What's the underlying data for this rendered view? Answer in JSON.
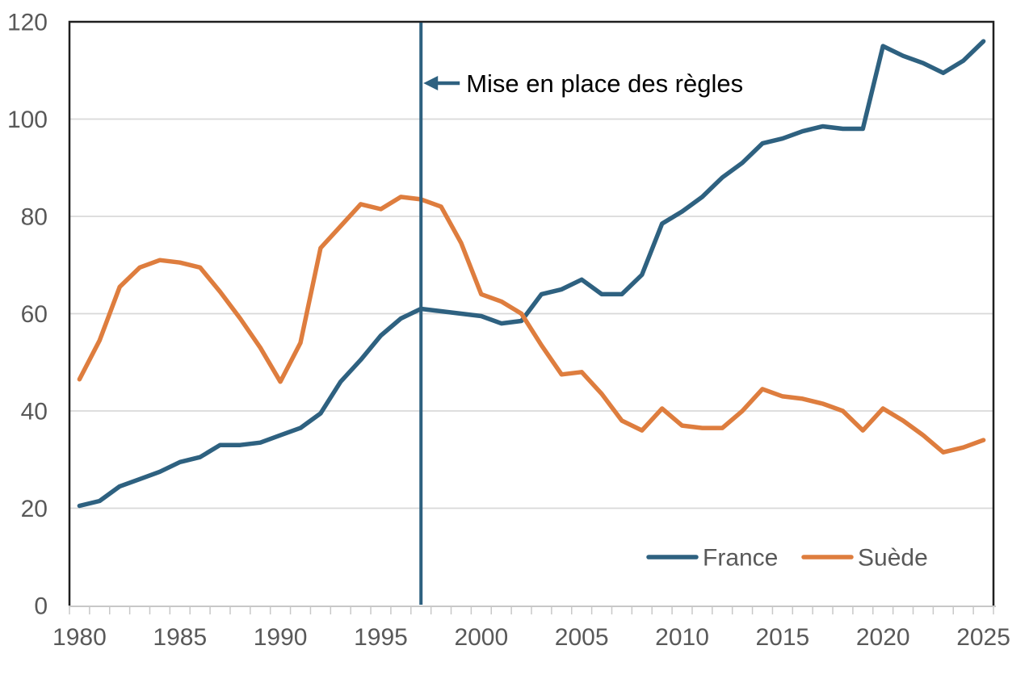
{
  "page": {
    "background": "#ffffff"
  },
  "chart_data": {
    "type": "line",
    "title": "",
    "xlabel": "",
    "ylabel": "",
    "x": [
      1980,
      1981,
      1982,
      1983,
      1984,
      1985,
      1986,
      1987,
      1988,
      1989,
      1990,
      1991,
      1992,
      1993,
      1994,
      1995,
      1996,
      1997,
      1998,
      1999,
      2000,
      2001,
      2002,
      2003,
      2004,
      2005,
      2006,
      2007,
      2008,
      2009,
      2010,
      2011,
      2012,
      2013,
      2014,
      2015,
      2016,
      2017,
      2018,
      2019,
      2020,
      2021,
      2022,
      2023,
      2024,
      2025
    ],
    "series": [
      {
        "name": "France",
        "color": "#2E6180",
        "values": [
          20.5,
          21.5,
          24.5,
          26,
          27.5,
          29.5,
          30.5,
          33,
          33,
          33.5,
          35,
          36.5,
          39.5,
          46,
          50.5,
          55.5,
          59,
          61,
          60.5,
          60,
          59.5,
          58,
          58.5,
          64,
          65,
          67,
          64,
          64,
          68,
          78.5,
          81,
          84,
          88,
          91,
          95,
          96,
          97.5,
          98.5,
          98,
          98,
          115,
          113,
          111.5,
          109.5,
          112,
          116
        ]
      },
      {
        "name": "Suède",
        "color": "#DE7D3E",
        "values": [
          46.5,
          54.5,
          65.5,
          69.5,
          71,
          70.5,
          69.5,
          64.5,
          59,
          53,
          46,
          54,
          73.5,
          78,
          82.5,
          81.5,
          84,
          83.5,
          82,
          74.5,
          64,
          62.5,
          60,
          53.5,
          47.5,
          48,
          43.5,
          38,
          36,
          40.5,
          37,
          36.5,
          36.5,
          40,
          44.5,
          43,
          42.5,
          41.5,
          40,
          36,
          40.5,
          38,
          35,
          31.5,
          32.5,
          34
        ]
      }
    ],
    "ylim": [
      0,
      120
    ],
    "yticks": [
      0,
      20,
      40,
      60,
      80,
      100,
      120
    ],
    "xticks": [
      1980,
      1985,
      1990,
      1995,
      2000,
      2005,
      2010,
      2015,
      2020,
      2025
    ],
    "grid": "horizontal-only",
    "legend_position": "inside-bottom-right",
    "vline": {
      "year": 1997,
      "color": "#2E6180"
    },
    "annotation": {
      "text": "Mise en place des règles",
      "points_to_year": 1997,
      "arrow_direction": "left",
      "arrow_color": "#2E6180",
      "text_color": "#000000"
    },
    "axis_style": {
      "tick_label_color": "#595959",
      "gridline_color": "#D9D9D9",
      "border_color": "#1F1F1F",
      "bottom_axis_color": "#C8C8C8"
    }
  }
}
